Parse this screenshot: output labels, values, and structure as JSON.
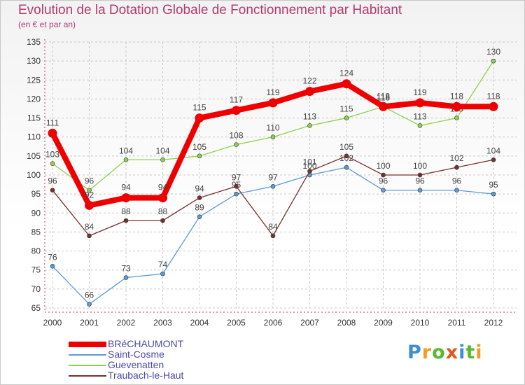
{
  "title": "Evolution de la Dotation Globale de Fonctionnement par Habitant",
  "subtitle": "(en € et par an)",
  "colors": {
    "title": "#b23a6e",
    "grid": "#c8c8c8",
    "axis": "#cc3355"
  },
  "logo": {
    "text": "Proxiti",
    "letter_colors": [
      "#3b8fd6",
      "#f39c1f",
      "#5ab82e",
      "#e8541e",
      "#3b8fd6",
      "#5ab82e",
      "#f39c1f"
    ]
  },
  "chart_data": {
    "type": "line",
    "title": "Evolution de la Dotation Globale de Fonctionnement par Habitant",
    "subtitle": "(en € et par an)",
    "xlabel": "",
    "ylabel": "",
    "ylim": [
      65,
      135
    ],
    "yticks": [
      65,
      70,
      75,
      80,
      85,
      90,
      95,
      100,
      105,
      110,
      115,
      120,
      125,
      130,
      135
    ],
    "grid": true,
    "legend_position": "bottom-left",
    "categories": [
      "2000",
      "2001",
      "2002",
      "2003",
      "2004",
      "2005",
      "2006",
      "2007",
      "2008",
      "2009",
      "2010",
      "2011",
      "2012"
    ],
    "series": [
      {
        "name": "Saint-Cosme",
        "color": "#5b9bd5",
        "values": [
          76,
          66,
          73,
          74,
          89,
          95,
          97,
          100,
          102,
          96,
          96,
          96,
          95
        ],
        "labels": [
          "76",
          "66",
          "73",
          "74",
          "89",
          "95",
          "97",
          "100",
          "102",
          "96",
          "96",
          "96",
          "95"
        ],
        "thick": false
      },
      {
        "name": "Guevenatten",
        "color": "#8fd14f",
        "values": [
          103,
          96,
          104,
          104,
          105,
          108,
          110,
          113,
          115,
          118,
          113,
          115,
          130
        ],
        "labels": [
          "103",
          "96",
          "104",
          "104",
          "105",
          "108",
          "110",
          "113",
          "115",
          "118",
          "113",
          "115",
          "130"
        ],
        "thick": false
      },
      {
        "name": "Traubach-le-Haut",
        "color": "#7a2e2e",
        "values": [
          96,
          84,
          88,
          88,
          94,
          97,
          84,
          101,
          105,
          100,
          100,
          102,
          104
        ],
        "labels": [
          "96",
          "84",
          "88",
          "88",
          "94",
          "97",
          "84",
          "101",
          "105",
          "100",
          "100",
          "102",
          "104"
        ],
        "thick": false
      },
      {
        "name": "BRéCHAUMONT",
        "color": "#ee0000",
        "values": [
          111,
          92,
          94,
          94,
          115,
          117,
          119,
          122,
          124,
          118,
          119,
          118,
          118
        ],
        "labels": [
          "111",
          "92",
          "94",
          "94",
          "115",
          "117",
          "119",
          "122",
          "124",
          "118",
          "119",
          "118",
          "118"
        ],
        "thick": true
      }
    ],
    "legend": [
      "BRéCHAUMONT",
      "Saint-Cosme",
      "Guevenatten",
      "Traubach-le-Haut"
    ]
  }
}
